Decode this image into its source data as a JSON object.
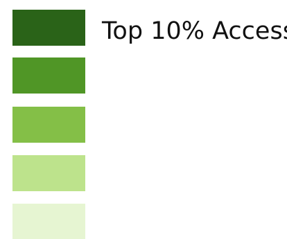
{
  "legend": {
    "items": [
      {
        "label": "Top 10% Access",
        "color": "#2a6318"
      },
      {
        "label": "",
        "color": "#509626"
      },
      {
        "label": "",
        "color": "#84bf47"
      },
      {
        "label": "",
        "color": "#bde38c"
      },
      {
        "label": "",
        "color": "#e6f5d2"
      }
    ]
  }
}
